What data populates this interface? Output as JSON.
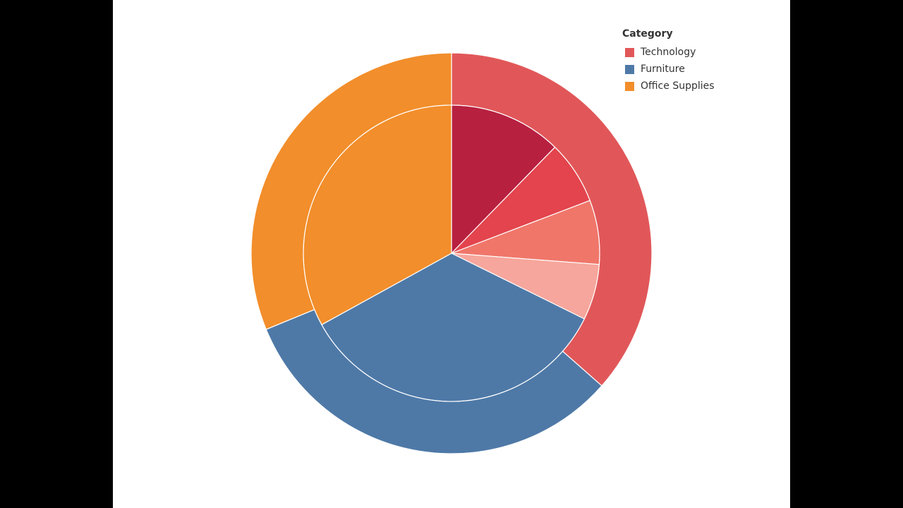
{
  "chart_data": {
    "type": "pie",
    "legend": {
      "title": "Category",
      "placement": "top-right",
      "entries": [
        {
          "label": "Technology",
          "color": "#e15759"
        },
        {
          "label": "Furniture",
          "color": "#4e79a7"
        },
        {
          "label": "Office Supplies",
          "color": "#f28e2b"
        }
      ]
    },
    "outer_ring": {
      "slices": [
        {
          "category": "Technology",
          "value": 36.5,
          "color": "#e15759"
        },
        {
          "category": "Furniture",
          "value": 32.3,
          "color": "#4e79a7"
        },
        {
          "category": "Office Supplies",
          "value": 31.2,
          "color": "#f28e2b"
        }
      ]
    },
    "inner_pie": {
      "slices": [
        {
          "category": "Technology",
          "value": 12.3,
          "color": "#b82040"
        },
        {
          "category": "Technology",
          "value": 6.9,
          "color": "#e3444d"
        },
        {
          "category": "Technology",
          "value": 7.0,
          "color": "#f0766a"
        },
        {
          "category": "Technology",
          "value": 6.1,
          "color": "#f6a69c"
        },
        {
          "category": "Furniture",
          "value": 34.7,
          "color": "#4e79a7"
        },
        {
          "category": "Office Supplies",
          "value": 33.0,
          "color": "#f28e2b"
        }
      ]
    },
    "title": "",
    "grid": false
  }
}
